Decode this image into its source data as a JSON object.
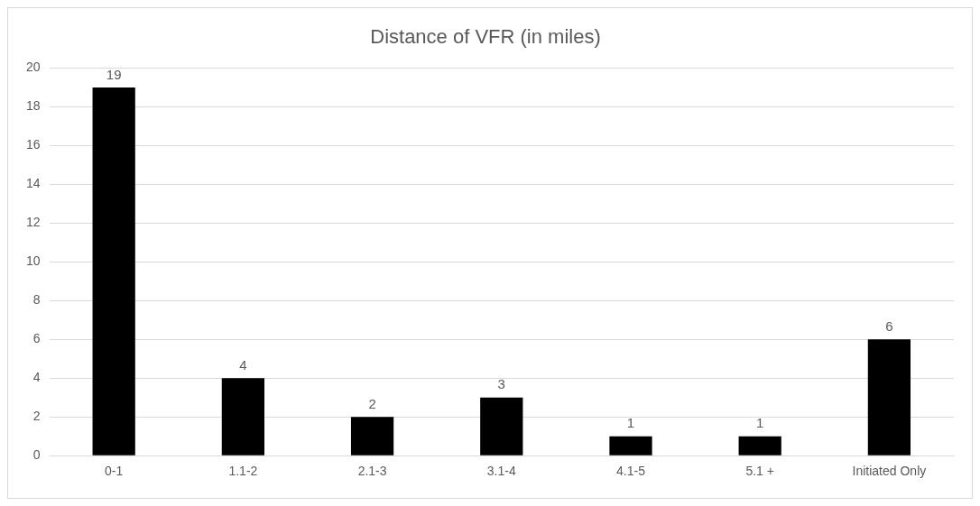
{
  "chart_data": {
    "type": "bar",
    "title": "Distance of VFR (in miles)",
    "categories": [
      "0-1",
      "1.1-2",
      "2.1-3",
      "3.1-4",
      "4.1-5",
      "5.1 +",
      "Initiated Only"
    ],
    "values": [
      19,
      4,
      2,
      3,
      1,
      1,
      6
    ],
    "color": "#000000",
    "ylim": [
      0,
      20
    ],
    "yticks": [
      0,
      2,
      4,
      6,
      8,
      10,
      12,
      14,
      16,
      18,
      20
    ],
    "grid": "y",
    "data_labels": true,
    "legend": false
  }
}
